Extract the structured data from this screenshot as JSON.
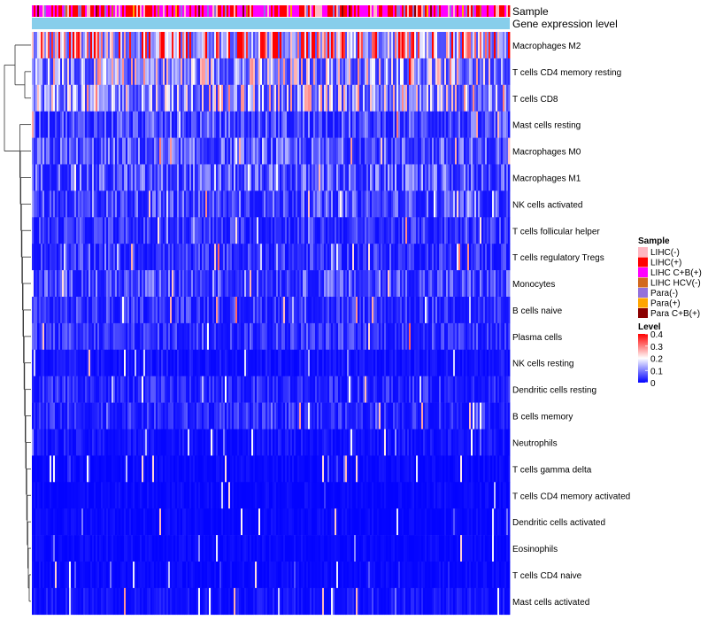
{
  "chart_data": {
    "type": "heatmap",
    "title": "",
    "annotation_tracks": [
      "Sample",
      "Gene expression level"
    ],
    "rows": [
      {
        "name": "Macrophages M2",
        "mean": 0.3
      },
      {
        "name": "T cells CD4 memory resting",
        "mean": 0.17
      },
      {
        "name": "T cells CD8",
        "mean": 0.17
      },
      {
        "name": "Mast cells resting",
        "mean": 0.07
      },
      {
        "name": "Macrophages M0",
        "mean": 0.08
      },
      {
        "name": "Macrophages M1",
        "mean": 0.08
      },
      {
        "name": "NK cells activated",
        "mean": 0.07
      },
      {
        "name": "T cells follicular helper",
        "mean": 0.05
      },
      {
        "name": "T cells regulatory  Tregs",
        "mean": 0.05
      },
      {
        "name": "Monocytes",
        "mean": 0.07
      },
      {
        "name": "B cells naive",
        "mean": 0.05
      },
      {
        "name": "Plasma cells",
        "mean": 0.05
      },
      {
        "name": "NK cells resting",
        "mean": 0.02
      },
      {
        "name": "Dendritic cells resting",
        "mean": 0.04
      },
      {
        "name": "B cells memory",
        "mean": 0.04
      },
      {
        "name": "Neutrophils",
        "mean": 0.02
      },
      {
        "name": "T cells gamma delta",
        "mean": 0.01
      },
      {
        "name": "T cells CD4 memory activated",
        "mean": 0.01
      },
      {
        "name": "Dendritic cells activated",
        "mean": 0.01
      },
      {
        "name": "Eosinophils",
        "mean": 0.01
      },
      {
        "name": "T cells CD4 naive",
        "mean": 0.01
      },
      {
        "name": "Mast cells activated",
        "mean": 0.02
      }
    ],
    "legend_sample": {
      "title": "Sample",
      "entries": [
        {
          "label": "LIHC(-)",
          "color": "#ffb6c1"
        },
        {
          "label": "LIHC(+)",
          "color": "#ff0000"
        },
        {
          "label": "LIHC C+B(+)",
          "color": "#ff00ff"
        },
        {
          "label": "LIHC HCV(-)",
          "color": "#d2691e"
        },
        {
          "label": "Para(-)",
          "color": "#9370db"
        },
        {
          "label": "Para(+)",
          "color": "#ffa500"
        },
        {
          "label": "Para C+B(+)",
          "color": "#8b0000"
        }
      ]
    },
    "legend_level": {
      "title": "Level",
      "ticks": [
        "0.4",
        "0.3",
        "0.2",
        "0.1",
        "0"
      ],
      "tick_values": [
        0.4,
        0.3,
        0.2,
        0.1,
        0
      ],
      "range": [
        0,
        0.4
      ]
    },
    "gene_expression_color": "#87ceeb",
    "color_scale": [
      "#0000ff",
      "#ffffff",
      "#ff0000"
    ]
  }
}
